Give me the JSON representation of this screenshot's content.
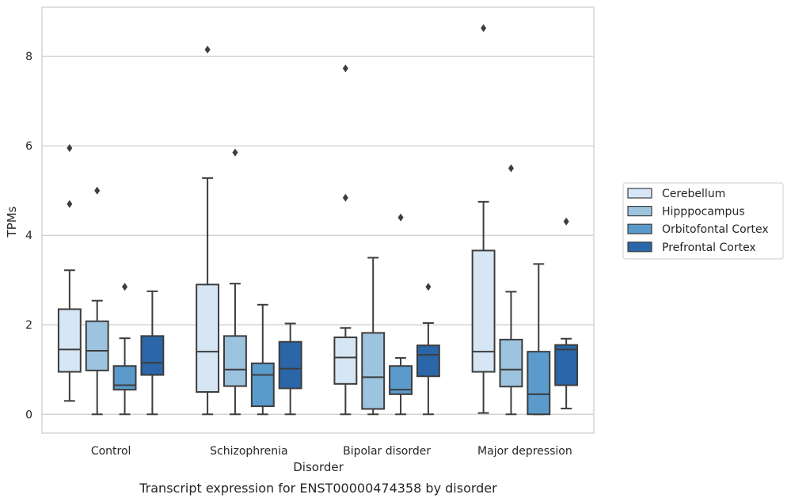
{
  "chart_data": {
    "type": "box",
    "xlabel": "Disorder",
    "ylabel": "TPMs",
    "caption": "Transcript expression for ENST00000474358 by disorder",
    "categories": [
      "Control",
      "Schizophrenia",
      "Bipolar disorder",
      "Major depression"
    ],
    "ylim": [
      -0.42,
      9.1
    ],
    "yticks": [
      0,
      2,
      4,
      6,
      8
    ],
    "grid": "horizontal",
    "legend_position": "right",
    "series": [
      {
        "name": "Cerebellum",
        "color": "#d6e6f4",
        "boxes": [
          {
            "whislo": 0.3,
            "q1": 0.95,
            "med": 1.45,
            "q3": 2.35,
            "whishi": 3.22,
            "fliers": [
              5.95,
              4.7
            ]
          },
          {
            "whislo": 0.0,
            "q1": 0.5,
            "med": 1.4,
            "q3": 2.9,
            "whishi": 5.28,
            "fliers": [
              8.15
            ]
          },
          {
            "whislo": 0.0,
            "q1": 0.68,
            "med": 1.27,
            "q3": 1.72,
            "whishi": 1.93,
            "fliers": [
              7.73,
              4.84
            ]
          },
          {
            "whislo": 0.03,
            "q1": 0.95,
            "med": 1.4,
            "q3": 3.66,
            "whishi": 4.75,
            "fliers": [
              8.63
            ]
          }
        ]
      },
      {
        "name": "Hipppocampus",
        "color": "#9dc4df",
        "boxes": [
          {
            "whislo": 0.0,
            "q1": 0.98,
            "med": 1.42,
            "q3": 2.08,
            "whishi": 2.54,
            "fliers": [
              5.0
            ]
          },
          {
            "whislo": 0.0,
            "q1": 0.63,
            "med": 1.0,
            "q3": 1.75,
            "whishi": 2.92,
            "fliers": [
              5.85
            ]
          },
          {
            "whislo": 0.0,
            "q1": 0.12,
            "med": 0.83,
            "q3": 1.82,
            "whishi": 3.5,
            "fliers": []
          },
          {
            "whislo": 0.0,
            "q1": 0.62,
            "med": 1.0,
            "q3": 1.67,
            "whishi": 2.74,
            "fliers": [
              5.5
            ]
          }
        ]
      },
      {
        "name": "Orbitofontal Cortex",
        "color": "#5a9bcb",
        "boxes": [
          {
            "whislo": 0.0,
            "q1": 0.55,
            "med": 0.65,
            "q3": 1.08,
            "whishi": 1.7,
            "fliers": [
              2.85
            ]
          },
          {
            "whislo": 0.0,
            "q1": 0.18,
            "med": 0.88,
            "q3": 1.14,
            "whishi": 2.45,
            "fliers": []
          },
          {
            "whislo": 0.0,
            "q1": 0.45,
            "med": 0.55,
            "q3": 1.08,
            "whishi": 1.26,
            "fliers": [
              4.4
            ]
          },
          {
            "whislo": 0.0,
            "q1": 0.0,
            "med": 0.45,
            "q3": 1.4,
            "whishi": 3.36,
            "fliers": []
          }
        ]
      },
      {
        "name": "Prefrontal Cortex",
        "color": "#2a66a8",
        "boxes": [
          {
            "whislo": 0.0,
            "q1": 0.88,
            "med": 1.15,
            "q3": 1.75,
            "whishi": 2.75,
            "fliers": []
          },
          {
            "whislo": 0.0,
            "q1": 0.58,
            "med": 1.02,
            "q3": 1.62,
            "whishi": 2.03,
            "fliers": []
          },
          {
            "whislo": 0.0,
            "q1": 0.85,
            "med": 1.33,
            "q3": 1.54,
            "whishi": 2.04,
            "fliers": [
              2.85
            ]
          },
          {
            "whislo": 0.13,
            "q1": 0.65,
            "med": 1.45,
            "q3": 1.55,
            "whishi": 1.69,
            "fliers": [
              4.31
            ]
          }
        ]
      }
    ]
  }
}
